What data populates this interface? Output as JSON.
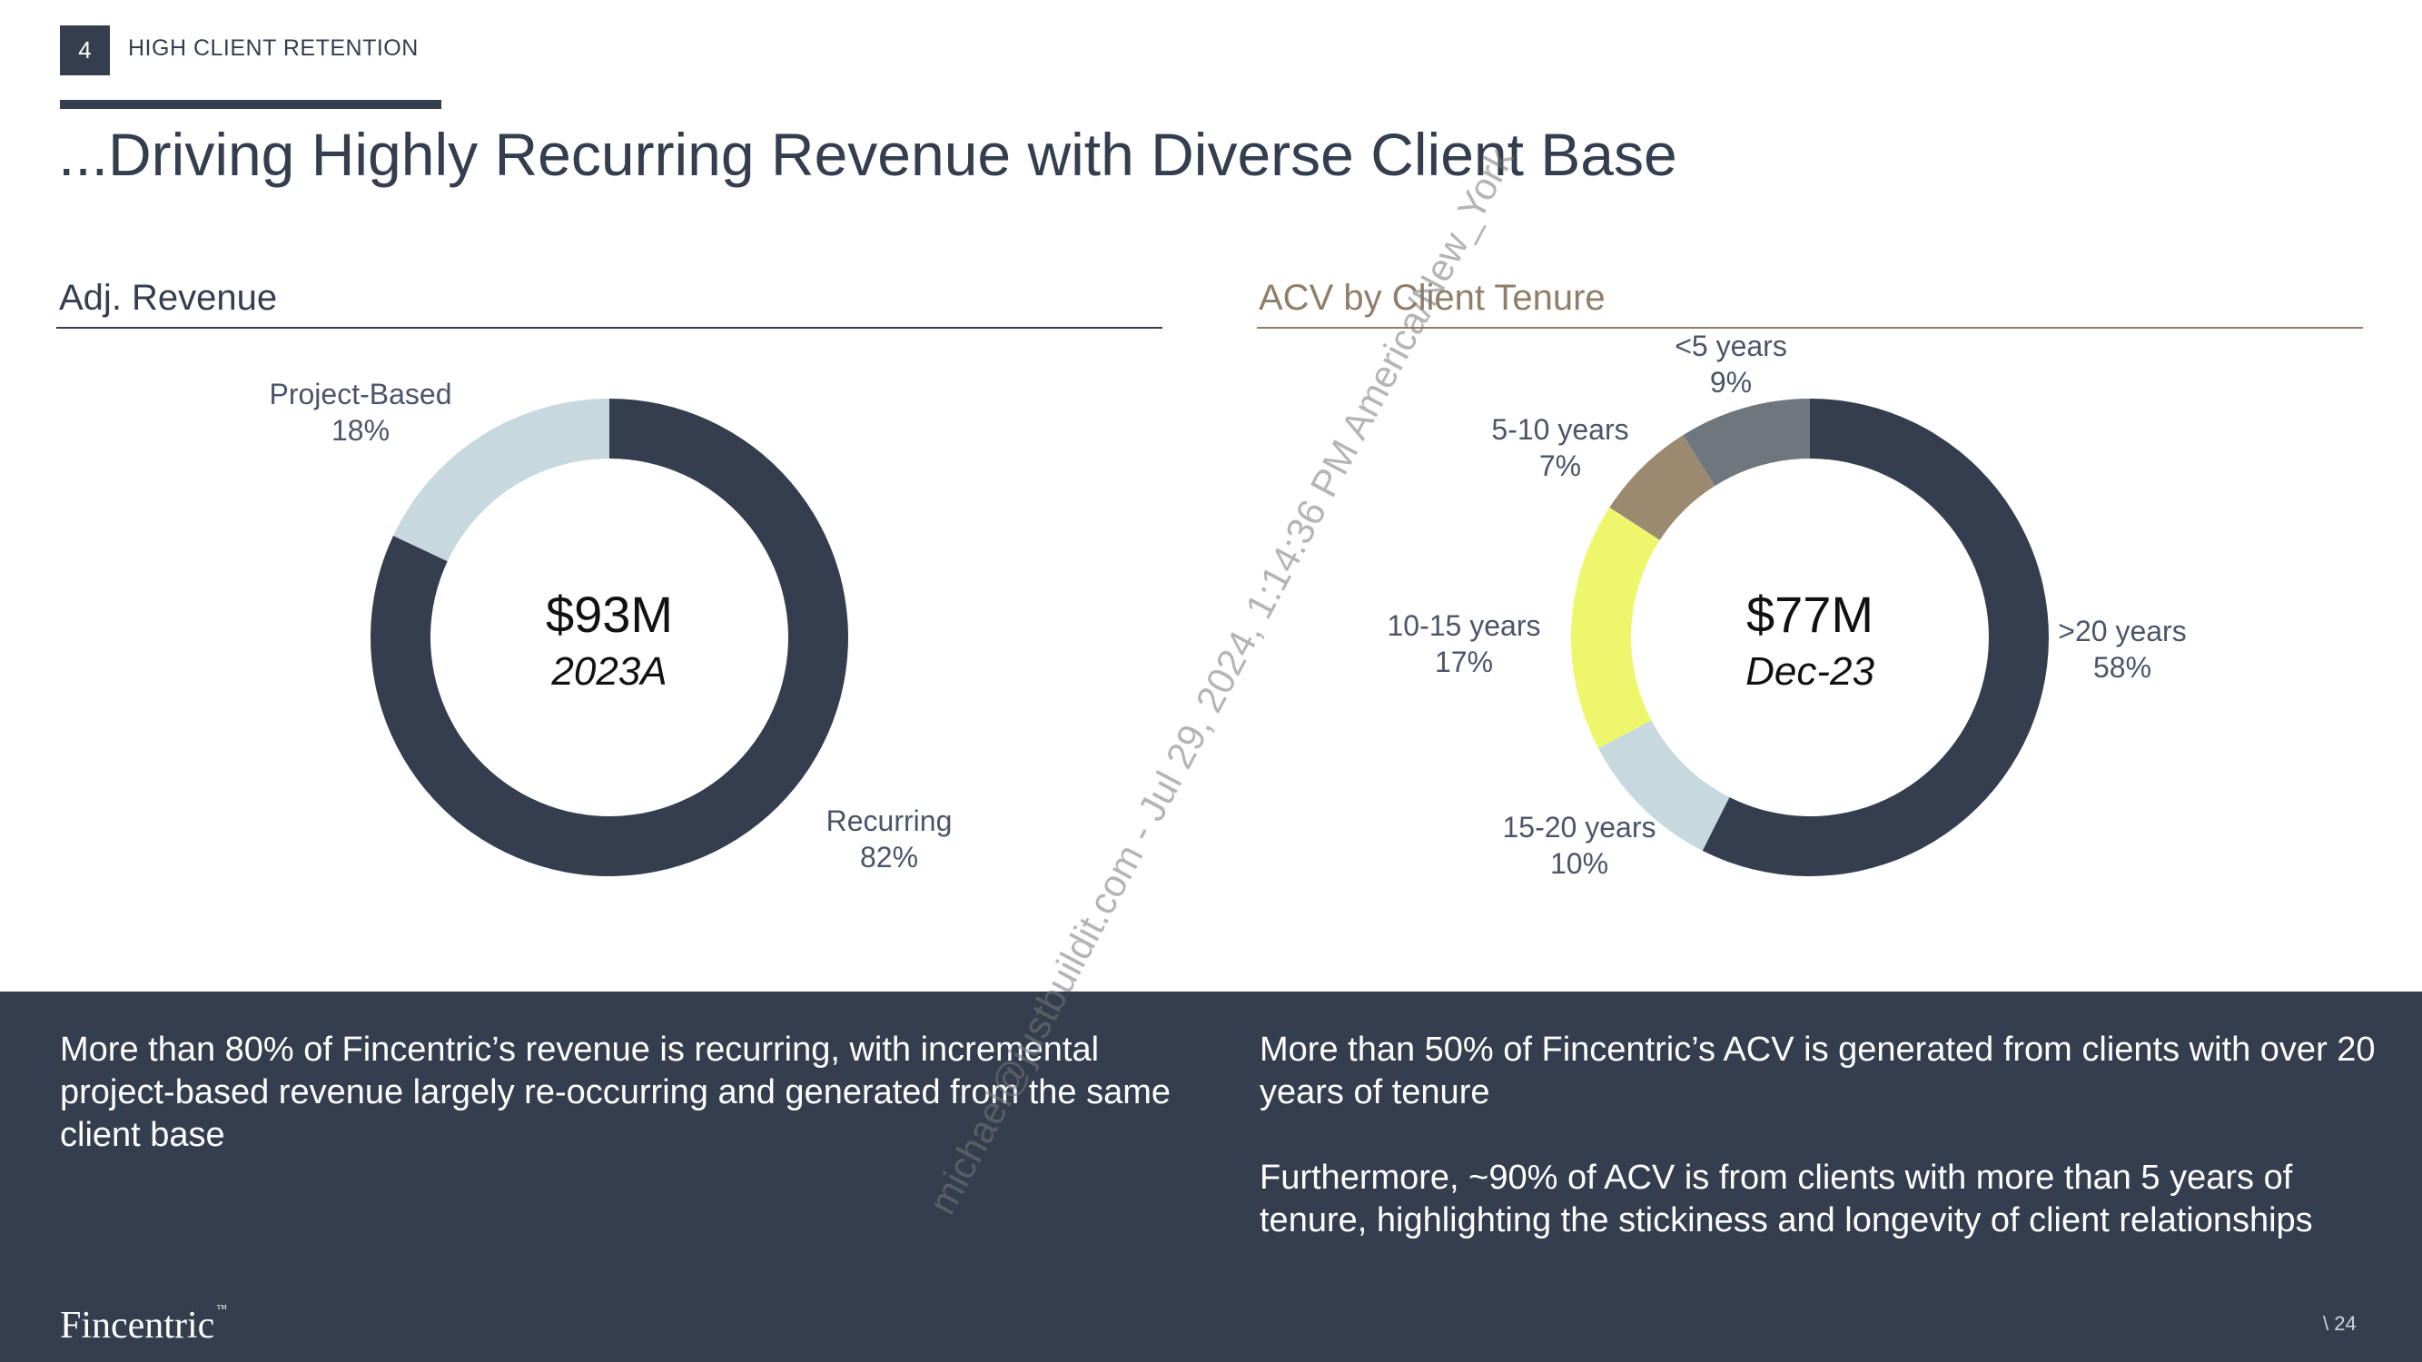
{
  "header": {
    "section_number": "4",
    "section_label": "HIGH CLIENT RETENTION",
    "title": "...Driving Highly Recurring Revenue with Diverse Client Base"
  },
  "panels": {
    "left_title": "Adj. Revenue",
    "right_title": "ACV by Client Tenure"
  },
  "chart_data": [
    {
      "type": "pie",
      "title": "Adj. Revenue",
      "center_value": "$93M",
      "center_sub": "2023A",
      "slices": [
        {
          "label": "Recurring",
          "value": 82,
          "pct_label": "82%",
          "color": "#343e4f"
        },
        {
          "label": "Project-Based",
          "value": 18,
          "pct_label": "18%",
          "color": "#c7d8df"
        }
      ]
    },
    {
      "type": "pie",
      "title": "ACV by Client Tenure",
      "center_value": "$77M",
      "center_sub": "Dec-23",
      "slices": [
        {
          "label": ">20 years",
          "value": 58,
          "pct_label": "58%",
          "color": "#343e4f"
        },
        {
          "label": "15-20 years",
          "value": 10,
          "pct_label": "10%",
          "color": "#c7d8df"
        },
        {
          "label": "10-15 years",
          "value": 17,
          "pct_label": "17%",
          "color": "#eef76c"
        },
        {
          "label": "5-10 years",
          "value": 7,
          "pct_label": "7%",
          "color": "#9b8a70"
        },
        {
          "label": "<5 years",
          "value": 9,
          "pct_label": "9%",
          "color": "#6f777e"
        }
      ]
    }
  ],
  "bottom": {
    "left_text": "More than 80% of Fincentric’s revenue is recurring, with incremental project-based revenue largely re-occurring and generated from the same client base",
    "right_text_1": "More than 50% of Fincentric’s ACV is generated from clients with over 20 years of tenure",
    "right_text_2": "Furthermore, ~90% of ACV is from clients with more than 5 years of tenure, highlighting the stickiness and longevity of client relationships"
  },
  "footer": {
    "logo": "Fincentric",
    "logo_mark": "™",
    "page_number": "\\ 24"
  },
  "watermark": "michael@justbuildit.com - Jul 29, 2024, 1:14:36 PM America/New_York"
}
